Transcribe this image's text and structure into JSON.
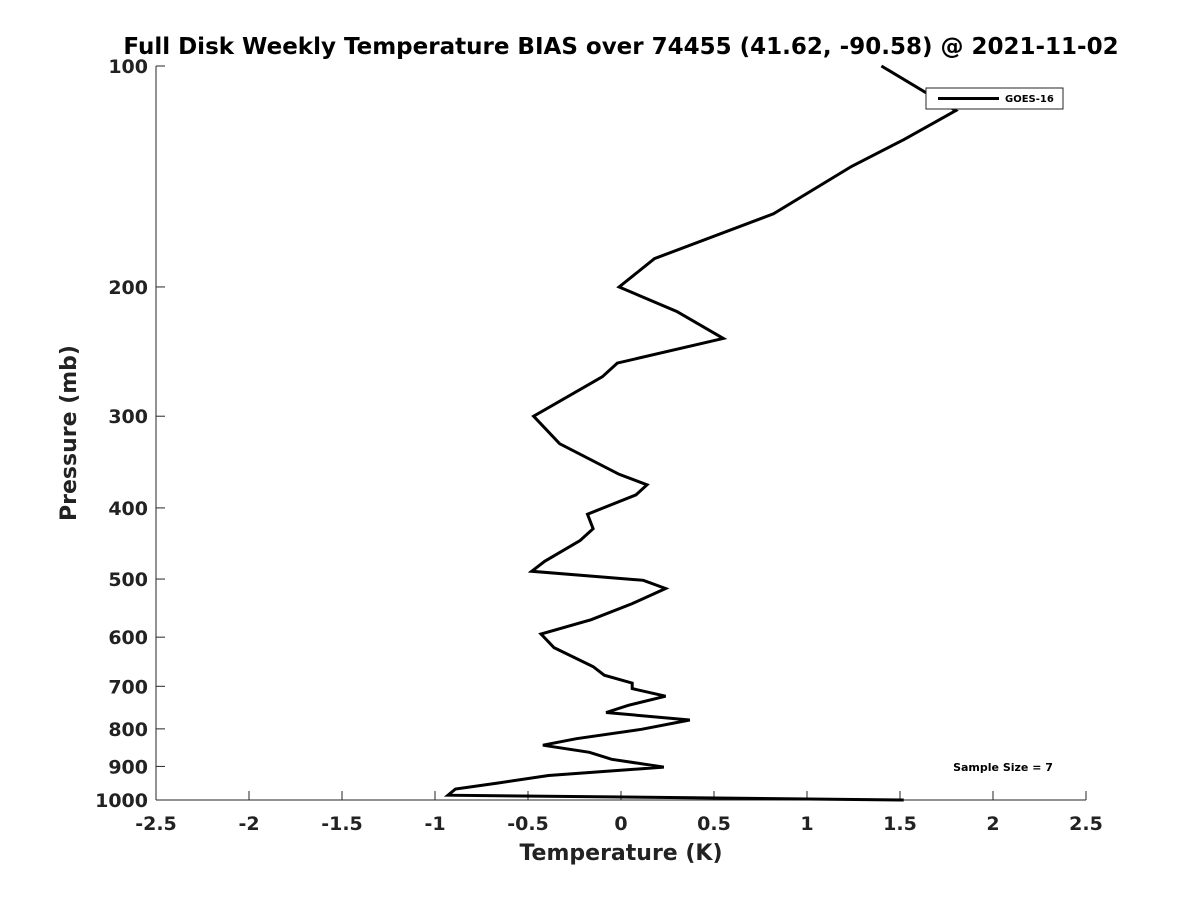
{
  "chart_data": {
    "type": "line",
    "title": "Full Disk Weekly Temperature BIAS over 74455 (41.62, -90.58) @ 2021-11-02",
    "xlabel": "Temperature (K)",
    "ylabel": "Pressure (mb)",
    "xlim": [
      -2.5,
      2.5
    ],
    "ylim": [
      100,
      1000
    ],
    "y_scale": "log",
    "y_reversed": true,
    "grid": false,
    "legend_position": "top-right",
    "x_ticks": [
      -2.5,
      -2,
      -1.5,
      -1,
      -0.5,
      0,
      0.5,
      1,
      1.5,
      2,
      2.5
    ],
    "x_tick_labels": [
      "-2.5",
      "-2",
      "-1.5",
      "-1",
      "-0.5",
      "0",
      "0.5",
      "1",
      "1.5",
      "2",
      "2.5"
    ],
    "y_ticks": [
      100,
      200,
      300,
      400,
      500,
      600,
      700,
      800,
      900,
      1000
    ],
    "y_tick_labels": [
      "100",
      "200",
      "300",
      "400",
      "500",
      "600",
      "700",
      "800",
      "900",
      "1000"
    ],
    "annotation": "Sample Size = 7",
    "series": [
      {
        "name": "GOES-16",
        "color": "#000000",
        "points": [
          [
            1.4,
            100
          ],
          [
            1.8,
            115
          ],
          [
            1.52,
            126
          ],
          [
            1.24,
            137
          ],
          [
            0.82,
            159
          ],
          [
            0.18,
            183
          ],
          [
            -0.01,
            200
          ],
          [
            0.3,
            216
          ],
          [
            0.55,
            235
          ],
          [
            -0.02,
            254
          ],
          [
            -0.1,
            265
          ],
          [
            -0.47,
            300
          ],
          [
            -0.33,
            327
          ],
          [
            -0.01,
            360
          ],
          [
            0.14,
            372
          ],
          [
            0.08,
            384
          ],
          [
            -0.18,
            408
          ],
          [
            -0.15,
            427
          ],
          [
            -0.22,
            443
          ],
          [
            -0.41,
            473
          ],
          [
            -0.48,
            488
          ],
          [
            0.12,
            502
          ],
          [
            0.24,
            515
          ],
          [
            0.06,
            540
          ],
          [
            -0.16,
            568
          ],
          [
            -0.43,
            594
          ],
          [
            -0.36,
            620
          ],
          [
            -0.15,
            658
          ],
          [
            -0.09,
            676
          ],
          [
            0.06,
            693
          ],
          [
            0.06,
            705
          ],
          [
            0.24,
            722
          ],
          [
            0.04,
            743
          ],
          [
            -0.08,
            760
          ],
          [
            0.37,
            778
          ],
          [
            0.11,
            801
          ],
          [
            -0.24,
            825
          ],
          [
            -0.42,
            842
          ],
          [
            -0.17,
            861
          ],
          [
            -0.05,
            880
          ],
          [
            0.23,
            902
          ],
          [
            -0.39,
            926
          ],
          [
            -0.66,
            948
          ],
          [
            -0.89,
            966
          ],
          [
            -0.93,
            985
          ],
          [
            1.52,
            1000
          ]
        ]
      }
    ]
  }
}
